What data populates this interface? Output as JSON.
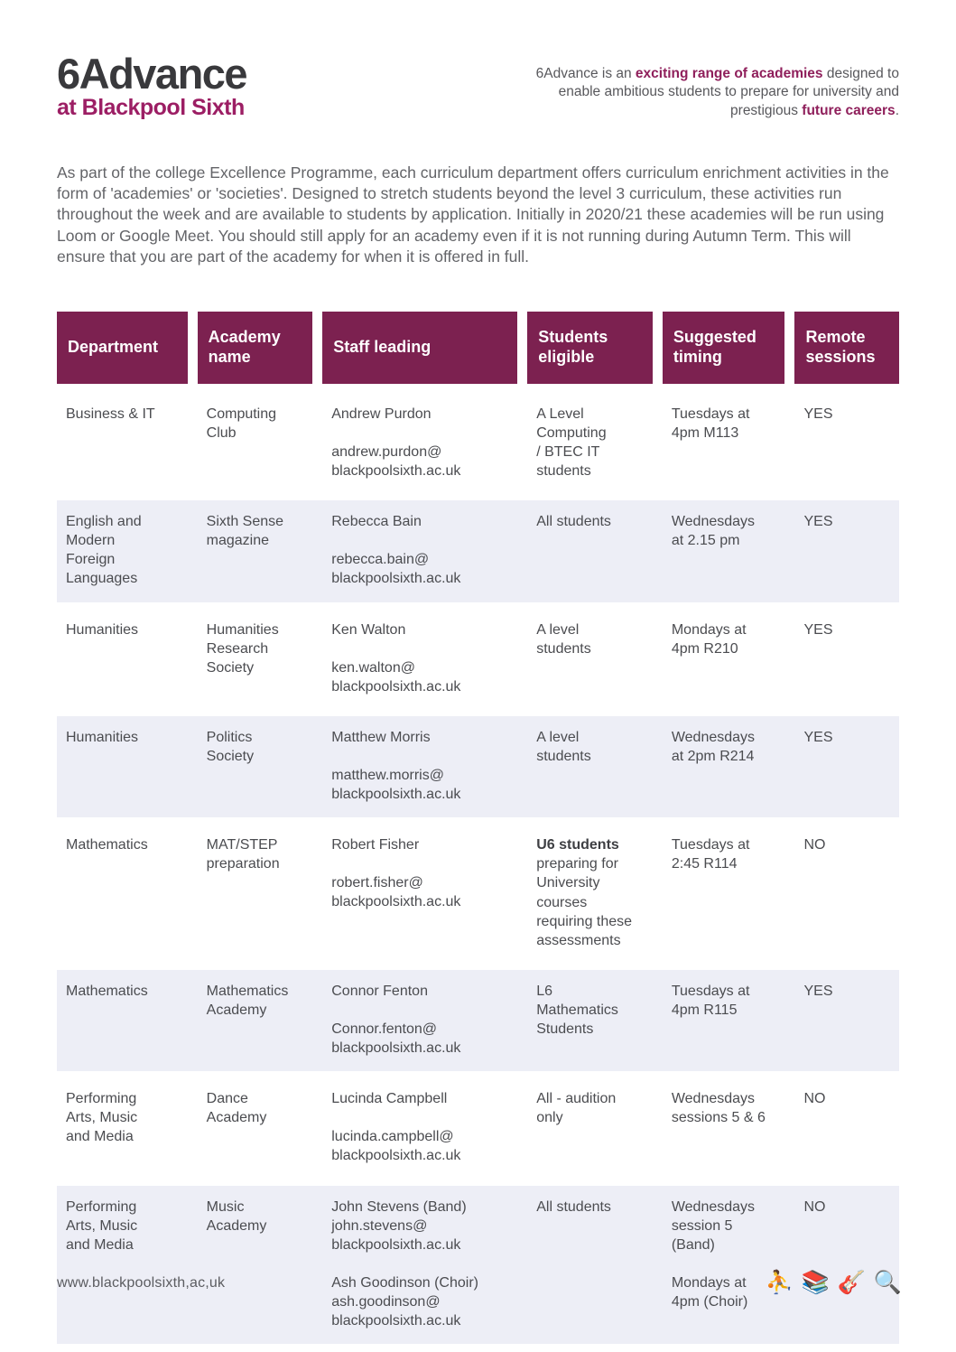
{
  "logo": {
    "title": "6Advance",
    "subtitle": "at Blackpool Sixth"
  },
  "tagline": {
    "part1": "6Advance is an ",
    "bold1": "exciting range of academies",
    "part2": " designed to enable ambitious students to prepare for university and prestigious ",
    "bold2": "future careers",
    "part3": "."
  },
  "intro": "As part of the college Excellence Programme, each curriculum department offers curriculum enrichment activities in the form of 'academies' or 'societies'. Designed to stretch students beyond the level 3 curriculum, these activities run throughout the week and are available to students by application. Initially in 2020/21 these academies will be run using Loom or Google Meet. You should still apply for an academy even if it is not running during Autumn Term. This will ensure that you are part of the academy for when it is offered in full.",
  "table": {
    "headers": [
      "Department",
      "Academy name",
      "Staff leading",
      "Students eligible",
      "Suggested timing",
      "Remote sessions"
    ],
    "rows": [
      {
        "department": [
          [
            "Business & IT"
          ]
        ],
        "academy": [
          [
            "Computing",
            "Club"
          ]
        ],
        "staff": [
          [
            "Andrew Purdon"
          ],
          [
            "andrew.purdon@",
            "blackpoolsixth.ac.uk"
          ]
        ],
        "students": [
          [
            "A Level",
            "Computing",
            "/ BTEC  IT",
            "students"
          ]
        ],
        "timing": [
          [
            "Tuesdays at",
            "4pm M113"
          ]
        ],
        "remote": "YES"
      },
      {
        "department": [
          [
            "English and",
            "Modern",
            "Foreign",
            "Languages"
          ]
        ],
        "academy": [
          [
            "Sixth Sense",
            "magazine"
          ]
        ],
        "staff": [
          [
            "Rebecca Bain"
          ],
          [
            "rebecca.bain@",
            "blackpoolsixth.ac.uk"
          ]
        ],
        "students": [
          [
            "All students"
          ]
        ],
        "timing": [
          [
            "Wednesdays",
            "at 2.15 pm"
          ]
        ],
        "remote": "YES"
      },
      {
        "department": [
          [
            "Humanities"
          ]
        ],
        "academy": [
          [
            "Humanities",
            "Research",
            "Society"
          ]
        ],
        "staff": [
          [
            "Ken Walton"
          ],
          [
            "ken.walton@",
            "blackpoolsixth.ac.uk"
          ]
        ],
        "students": [
          [
            "A level",
            "students"
          ]
        ],
        "timing": [
          [
            "Mondays at",
            "4pm R210"
          ]
        ],
        "remote": "YES"
      },
      {
        "department": [
          [
            "Humanities"
          ]
        ],
        "academy": [
          [
            "Politics",
            "Society"
          ]
        ],
        "staff": [
          [
            "Matthew Morris"
          ],
          [
            "matthew.morris@",
            "blackpoolsixth.ac.uk"
          ]
        ],
        "students": [
          [
            "A level",
            "students"
          ]
        ],
        "timing": [
          [
            "Wednesdays",
            "at 2pm R214"
          ]
        ],
        "remote": "YES"
      },
      {
        "department": [
          [
            "Mathematics"
          ]
        ],
        "academy": [
          [
            "MAT/STEP",
            "preparation"
          ]
        ],
        "staff": [
          [
            "Robert Fisher"
          ],
          [
            "robert.fisher@",
            "blackpoolsixth.ac.uk"
          ]
        ],
        "students": [
          [
            "**U6 students**",
            "preparing for",
            "University",
            "courses",
            "requiring these",
            "assessments"
          ]
        ],
        "timing": [
          [
            "Tuesdays at",
            "2:45 R114"
          ]
        ],
        "remote": "NO"
      },
      {
        "department": [
          [
            "Mathematics"
          ]
        ],
        "academy": [
          [
            "Mathematics",
            "Academy"
          ]
        ],
        "staff": [
          [
            "Connor Fenton"
          ],
          [
            "Connor.fenton@",
            "blackpoolsixth.ac.uk"
          ]
        ],
        "students": [
          [
            "L6",
            "Mathematics",
            "Students"
          ]
        ],
        "timing": [
          [
            "Tuesdays at",
            "4pm R115"
          ]
        ],
        "remote": "YES"
      },
      {
        "department": [
          [
            "Performing",
            "Arts, Music",
            "and Media"
          ]
        ],
        "academy": [
          [
            "Dance",
            "Academy"
          ]
        ],
        "staff": [
          [
            "Lucinda Campbell"
          ],
          [
            "lucinda.campbell@",
            "blackpoolsixth.ac.uk"
          ]
        ],
        "students": [
          [
            "All - audition",
            "only"
          ]
        ],
        "timing": [
          [
            "Wednesdays",
            "sessions 5 & 6"
          ]
        ],
        "remote": "NO"
      },
      {
        "department": [
          [
            "Performing",
            "Arts, Music",
            "and Media"
          ]
        ],
        "academy": [
          [
            "Music",
            "Academy"
          ]
        ],
        "staff": [
          [
            "John Stevens (Band)",
            "john.stevens@",
            "blackpoolsixth.ac.uk"
          ],
          [
            "Ash Goodinson (Choir)",
            "ash.goodinson@",
            "blackpoolsixth.ac.uk"
          ]
        ],
        "students": [
          [
            "All students"
          ]
        ],
        "timing": [
          [
            "Wednesdays",
            "session 5",
            "(Band)"
          ],
          [
            "Mondays at",
            "4pm (Choir)"
          ]
        ],
        "remote": "NO"
      }
    ]
  },
  "footer": {
    "url": "www.blackpoolsixth,ac,uk",
    "icons": [
      {
        "name": "basketball-player-icon",
        "glyph": "⛹️"
      },
      {
        "name": "books-icon",
        "glyph": "📚"
      },
      {
        "name": "guitar-icon",
        "glyph": "🎸"
      },
      {
        "name": "magnifying-glass-icon",
        "glyph": "🔍"
      }
    ]
  },
  "colors": {
    "header_maroon": "#7c2150",
    "logo_magenta": "#9c1e64",
    "accent_bold": "#8f1f5b",
    "row_alt": "#edeef6",
    "body_text": "#4b4c50"
  }
}
